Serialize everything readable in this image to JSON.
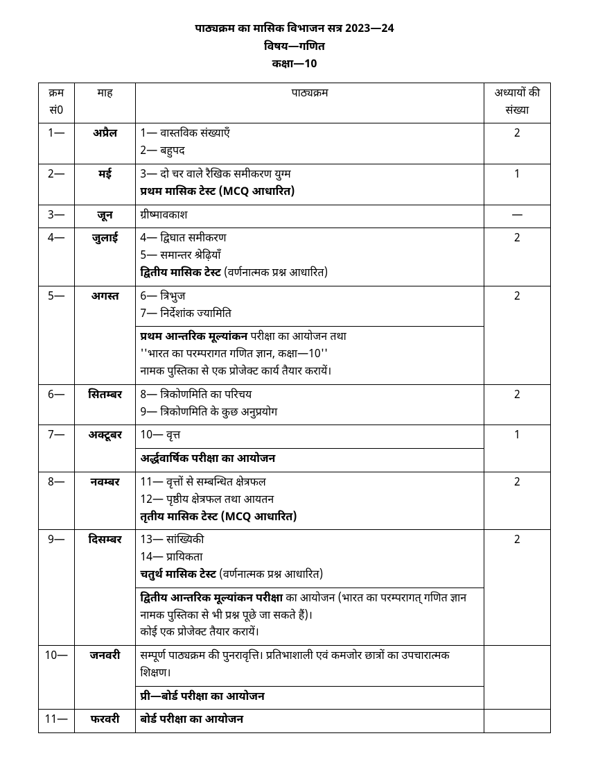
{
  "header": {
    "line1": "पाठ्यक्रम का मासिक विभाजन सत्र 2023—24",
    "line2": "विषय—गणित",
    "line3": "कक्षा—10"
  },
  "columns": {
    "sno": "क्रम सं0",
    "month": "माह",
    "syllabus": "पाठ्यक्रम",
    "chapters": "अध्यायों की संख्या"
  },
  "rows": [
    {
      "sno": "1—",
      "month": "अप्रैल",
      "cells": [
        {
          "html": "1— वास्तविक संख्याएँ<br>2— बहुपद"
        }
      ],
      "chapters": "2"
    },
    {
      "sno": "2—",
      "month": "मई",
      "cells": [
        {
          "html": "3— दो चर वाले रैखिक समीकरण युग्म<br><span class='bold'>प्रथम मासिक टेस्ट (MCQ आधारित)</span>"
        }
      ],
      "chapters": "1"
    },
    {
      "sno": "3—",
      "month": "जून",
      "cells": [
        {
          "html": "ग्रीष्मावकाश"
        }
      ],
      "chapters": "—"
    },
    {
      "sno": "4—",
      "month": "जुलाई",
      "cells": [
        {
          "html": "4— द्विघात समीकरण<br>5— समान्तर श्रेढ़ियाँ<br><span class='bold'>द्वितीय मासिक टेस्ट</span> (वर्णनात्मक प्रश्न आधारित)"
        }
      ],
      "chapters": "2"
    },
    {
      "sno": "5—",
      "month": "अगस्त",
      "cells": [
        {
          "html": "6— त्रिभुज<br>7— निर्देशांक ज्यामिति"
        },
        {
          "html": "<span class='bold'>प्रथम आन्तरिक मूल्यांकन</span> परीक्षा का आयोजन तथा<br>''भारत का परम्परागत गणित ज्ञान, कक्षा—10''<br>नामक पुस्तिका से एक प्रोजेक्ट कार्य तैयार करायें।"
        }
      ],
      "chapters": "2"
    },
    {
      "sno": "6—",
      "month": "सितम्बर",
      "cells": [
        {
          "html": "8— त्रिकोणमिति का परिचय<br>9— त्रिकोणमिति के कुछ अनुप्रयोग"
        }
      ],
      "chapters": "2"
    },
    {
      "sno": "7—",
      "month": "अक्टूबर",
      "cells": [
        {
          "html": "10— वृत्त"
        },
        {
          "html": "<span class='bold'>अर्द्धवार्षिक परीक्षा का आयोजन</span>"
        }
      ],
      "chapters": "1"
    },
    {
      "sno": "8—",
      "month": "नवम्बर",
      "cells": [
        {
          "html": "11— वृत्तों से सम्बन्धित क्षेत्रफल<br>12— पृष्ठीय क्षेत्रफल तथा आयतन<br><span class='bold'>तृतीय मासिक टेस्ट (MCQ आधारित)</span>"
        }
      ],
      "chapters": "2"
    },
    {
      "sno": "9—",
      "month": "दिसम्बर",
      "cells": [
        {
          "html": "13— सांख्यिकी<br>14— प्रायिकता<br><span class='bold'>चतुर्थ मासिक टेस्ट</span> (वर्णनात्मक प्रश्न आधारित)"
        },
        {
          "html": "<span class='bold'>द्वितीय आन्तरिक मूल्यांकन परीक्षा</span> का आयोजन (भारत का परम्परागत् गणित ज्ञान नामक पुस्तिका से भी प्रश्न पूछे जा सकते हैं)।<br>कोई एक प्रोजेक्ट तैयार करायें।"
        }
      ],
      "chapters": "2"
    },
    {
      "sno": "10—",
      "month": "जनवरी",
      "cells": [
        {
          "html": "सम्पूर्ण पाठ्यक्रम की पुनरावृत्ति। प्रतिभाशाली एवं कमजोर छात्रों का उपचारात्मक शिक्षण।"
        },
        {
          "html": "<span class='bold'>प्री—बोर्ड परीक्षा का आयोजन</span>"
        }
      ],
      "chapters": ""
    },
    {
      "sno": "11—",
      "month": "फरवरी",
      "cells": [
        {
          "html": "<span class='bold'>बोर्ड परीक्षा का आयोजन</span>"
        }
      ],
      "chapters": ""
    }
  ]
}
